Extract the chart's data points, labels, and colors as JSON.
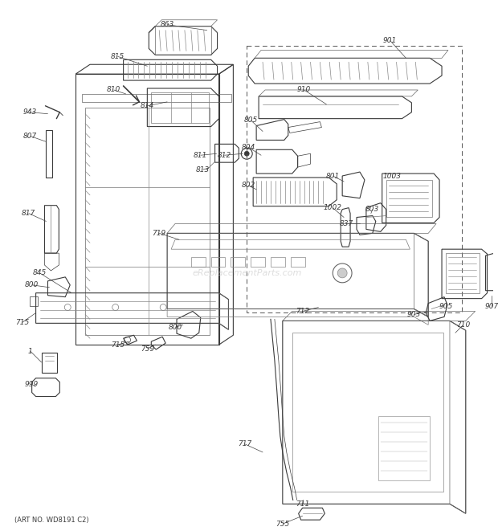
{
  "bg_color": "#ffffff",
  "fig_width": 6.2,
  "fig_height": 6.61,
  "dpi": 100,
  "watermark": "eReplacementParts.com",
  "art_no": "(ART NO. WD8191 C2)",
  "label_fontsize": 6.5,
  "art_fontsize": 6.0,
  "watermark_color": "#c8c8c8",
  "line_color": "#3a3a3a",
  "label_color": "#3a3a3a",
  "lw_main": 0.8,
  "lw_thin": 0.5,
  "lw_dashed": 0.7
}
